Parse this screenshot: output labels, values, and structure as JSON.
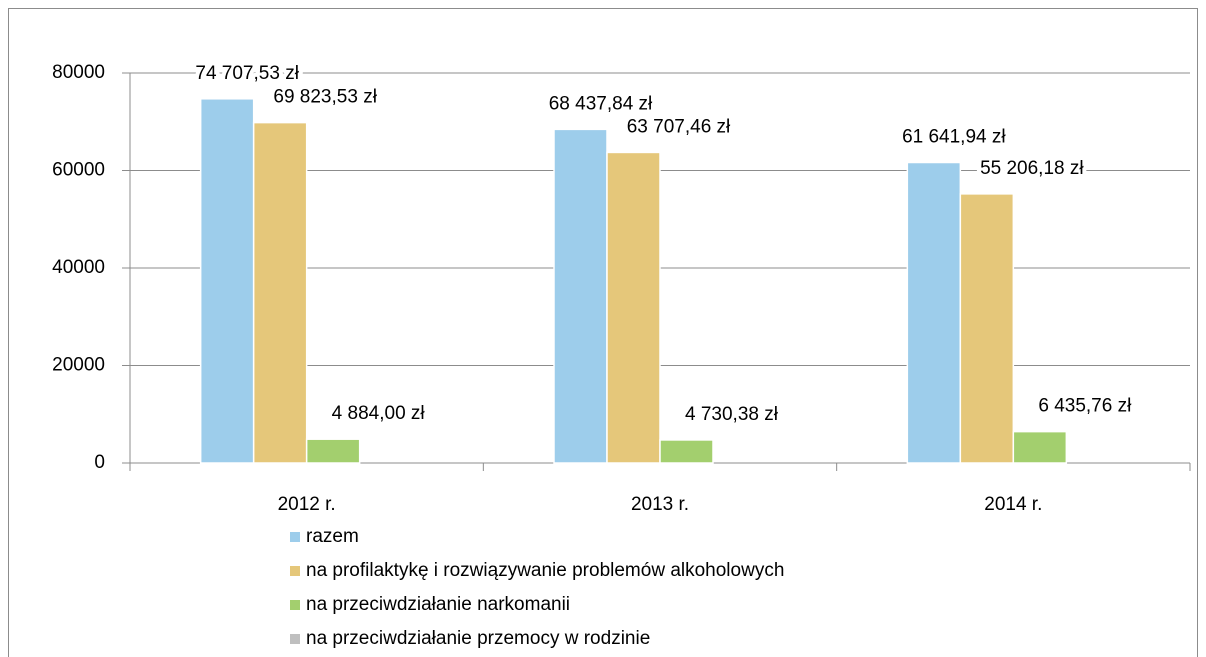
{
  "chart_data": {
    "type": "bar",
    "categories": [
      "2012 r.",
      "2013 r.",
      "2014 r."
    ],
    "series": [
      {
        "name": "razem",
        "color": "#9dcdeb",
        "values": [
          74707.53,
          68437.84,
          61641.94
        ],
        "value_labels": [
          "74 707,53 zł",
          "68 437,84 zł",
          "61 641,94 zł"
        ]
      },
      {
        "name": "na profilaktykę i rozwiązywanie problemów alkoholowych",
        "color": "#e5c77a",
        "values": [
          69823.53,
          63707.46,
          55206.18
        ],
        "value_labels": [
          "69 823,53 zł",
          "63 707,46 zł",
          "55 206,18 zł"
        ]
      },
      {
        "name": "na przeciwdziałanie narkomanii",
        "color": "#a3cf6e",
        "values": [
          4884.0,
          4730.38,
          6435.76
        ],
        "value_labels": [
          "4 884,00 zł",
          "4 730,38 zł",
          "6 435,76 zł"
        ]
      },
      {
        "name": "na przeciwdziałanie przemocy w rodzinie",
        "color": "#bfbfbf",
        "values": [
          null,
          null,
          null
        ]
      }
    ],
    "ylim": [
      0,
      80000
    ],
    "yticks": [
      0,
      20000,
      40000,
      60000,
      80000
    ],
    "grid": true,
    "legend": "bottom"
  }
}
